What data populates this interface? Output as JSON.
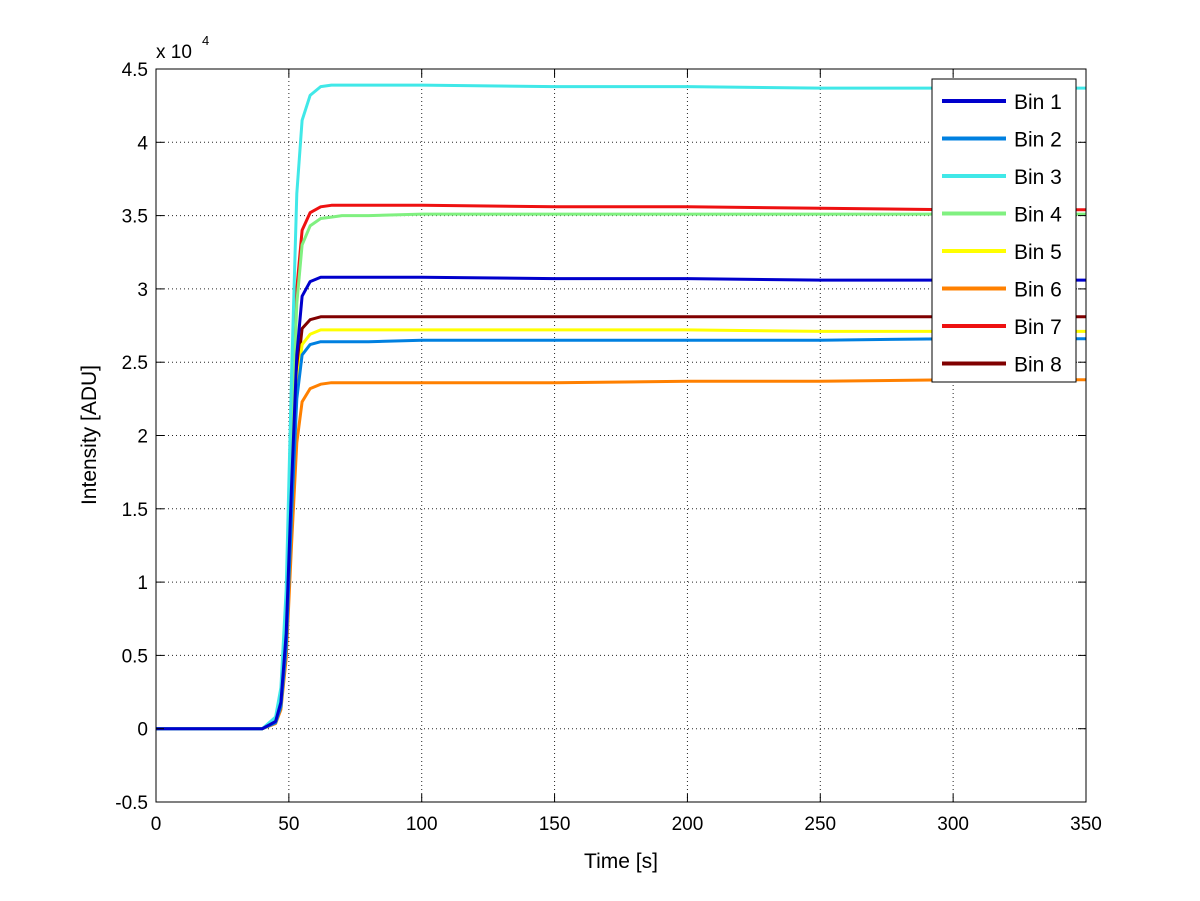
{
  "chart_data": {
    "type": "line",
    "title": "",
    "xlabel": "Time [s]",
    "ylabel": "Intensity [ADU]",
    "xlim": [
      0,
      350
    ],
    "ylim": [
      -5000,
      45000
    ],
    "x_ticks": [
      0,
      50,
      100,
      150,
      200,
      250,
      300,
      350
    ],
    "y_ticks": [
      -5000,
      0,
      5000,
      10000,
      15000,
      20000,
      25000,
      30000,
      35000,
      40000,
      45000
    ],
    "x_tick_labels": [
      "0",
      "50",
      "100",
      "150",
      "200",
      "250",
      "300",
      "350"
    ],
    "y_tick_labels": [
      "-0.5",
      "0",
      "0.5",
      "1",
      "1.5",
      "2",
      "2.5",
      "3",
      "3.5",
      "4",
      "4.5"
    ],
    "y_exponent_label": "x 10",
    "y_exponent_power": "4",
    "grid": true,
    "legend_position": "top-right",
    "x": [
      0,
      40,
      45,
      47,
      49,
      51,
      53,
      55,
      58,
      62,
      66,
      70,
      80,
      100,
      150,
      200,
      250,
      300,
      350
    ],
    "series": [
      {
        "name": "Bin 1",
        "color": "#0000cc",
        "values": [
          0,
          0,
          500,
          1800,
          6500,
          16500,
          25500,
          29500,
          30500,
          30800,
          30800,
          30800,
          30800,
          30800,
          30700,
          30700,
          30600,
          30600,
          30600
        ]
      },
      {
        "name": "Bin 2",
        "color": "#0080e0",
        "values": [
          0,
          0,
          400,
          1500,
          5500,
          14500,
          22500,
          25500,
          26200,
          26400,
          26400,
          26400,
          26400,
          26500,
          26500,
          26500,
          26500,
          26600,
          26600
        ]
      },
      {
        "name": "Bin 3",
        "color": "#40e8e8",
        "values": [
          0,
          0,
          800,
          2800,
          9500,
          24000,
          36500,
          41500,
          43200,
          43800,
          43900,
          43900,
          43900,
          43900,
          43800,
          43800,
          43700,
          43700,
          43700
        ]
      },
      {
        "name": "Bin 4",
        "color": "#80f080",
        "values": [
          0,
          0,
          650,
          2300,
          8000,
          19500,
          29000,
          33000,
          34300,
          34800,
          34900,
          35000,
          35000,
          35100,
          35100,
          35100,
          35100,
          35100,
          35100
        ]
      },
      {
        "name": "Bin 5",
        "color": "#ffff00",
        "values": [
          0,
          0,
          450,
          1600,
          6000,
          15000,
          23000,
          26200,
          26900,
          27200,
          27200,
          27200,
          27200,
          27200,
          27200,
          27200,
          27100,
          27100,
          27100
        ]
      },
      {
        "name": "Bin 6",
        "color": "#ff8000",
        "values": [
          0,
          0,
          350,
          1300,
          4800,
          12500,
          19500,
          22300,
          23200,
          23500,
          23600,
          23600,
          23600,
          23600,
          23600,
          23700,
          23700,
          23800,
          23800
        ]
      },
      {
        "name": "Bin 7",
        "color": "#ee1111",
        "values": [
          0,
          0,
          650,
          2300,
          8000,
          20000,
          30000,
          34000,
          35200,
          35600,
          35700,
          35700,
          35700,
          35700,
          35600,
          35600,
          35500,
          35400,
          35400
        ]
      },
      {
        "name": "Bin 8",
        "color": "#800000",
        "values": [
          0,
          0,
          450,
          1700,
          6200,
          15500,
          24000,
          27300,
          27900,
          28100,
          28100,
          28100,
          28100,
          28100,
          28100,
          28100,
          28100,
          28100,
          28100
        ]
      }
    ]
  }
}
